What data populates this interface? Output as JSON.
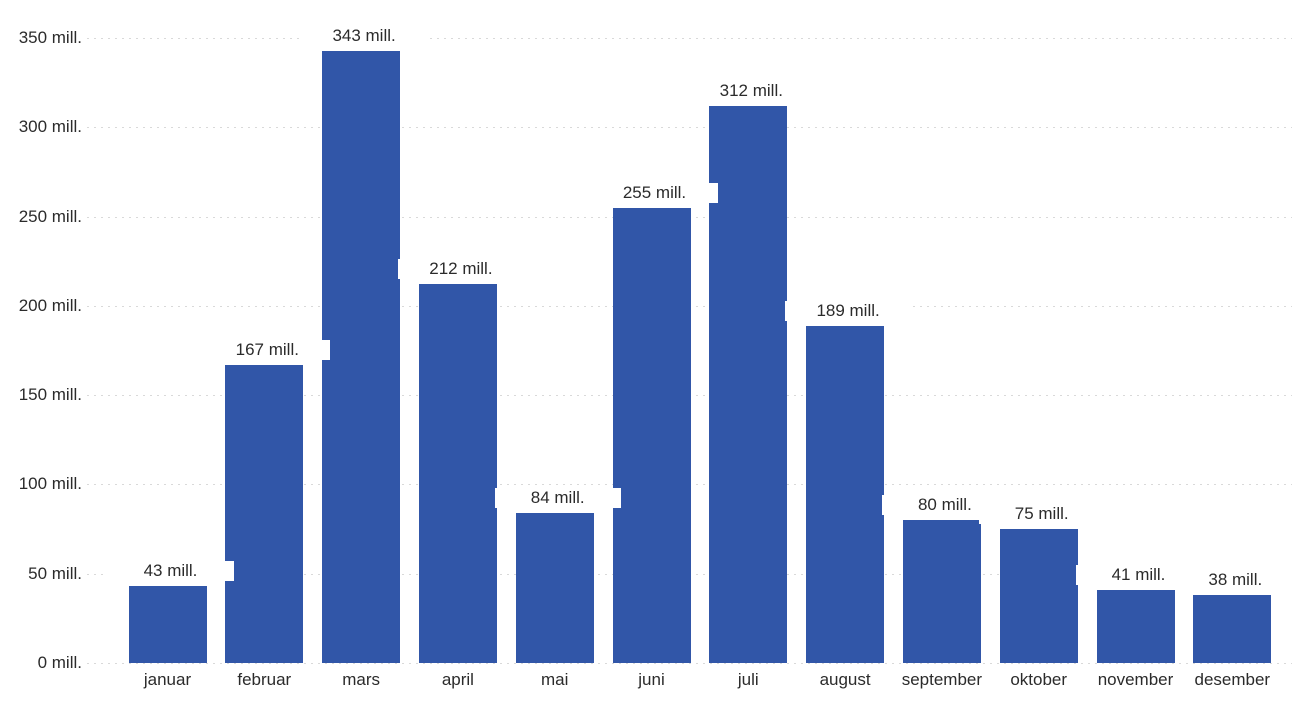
{
  "chart_data": {
    "type": "bar",
    "title": "",
    "xlabel": "",
    "ylabel": "",
    "unit": "mill.",
    "categories": [
      "januar",
      "februar",
      "mars",
      "april",
      "mai",
      "juni",
      "juli",
      "august",
      "september",
      "oktober",
      "november",
      "desember"
    ],
    "values": [
      43,
      167,
      343,
      212,
      84,
      255,
      312,
      189,
      80,
      75,
      41,
      38
    ],
    "bar_labels": [
      "43 mill.",
      "167 mill.",
      "343 mill.",
      "212 mill.",
      "84 mill.",
      "255 mill.",
      "312 mill.",
      "189 mill.",
      "80 mill.",
      "75 mill.",
      "41 mill.",
      "38 mill."
    ],
    "y_tick_values": [
      0,
      50,
      100,
      150,
      200,
      250,
      300,
      350
    ],
    "y_tick_labels": [
      "0 mill.",
      "50 mill.",
      "100 mill.",
      "150 mill.",
      "200 mill.",
      "250 mill.",
      "300 mill.",
      "350 mill."
    ],
    "ylim": [
      0,
      350
    ],
    "grid": "horizontal-dotted",
    "legend": "none",
    "series_name": "",
    "bar_color": "#3156a8",
    "gridline_color": "#d9d9d9",
    "text_color": "#2b2b2b",
    "background_color": "#ffffff"
  }
}
